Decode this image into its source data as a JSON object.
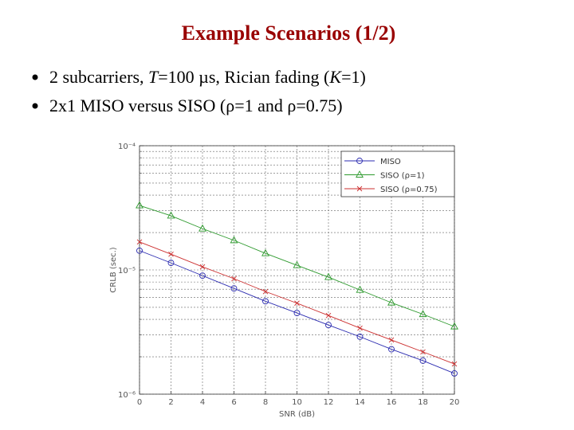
{
  "title": "Example Scenarios (1/2)",
  "bullets": [
    [
      "2 subcarriers, ",
      "T",
      "=100 µs, Rician fading (",
      "K",
      "=1)"
    ],
    [
      "2x1 MISO versus SISO (ρ=1 and ρ=0.75)"
    ]
  ],
  "chart_data": {
    "type": "line",
    "xlabel": "SNR (dB)",
    "ylabel": "CRLB (sec.)",
    "x": [
      0,
      2,
      4,
      6,
      8,
      10,
      12,
      14,
      16,
      18,
      20
    ],
    "xlim": [
      0,
      20
    ],
    "xticks": [
      0,
      2,
      4,
      6,
      8,
      10,
      12,
      14,
      16,
      18,
      20
    ],
    "ylim": [
      1e-06,
      0.0001
    ],
    "yticks": [
      {
        "value": 0.0001,
        "label": "10⁻⁴"
      },
      {
        "value": 1e-05,
        "label": "10⁻⁵"
      },
      {
        "value": 1e-06,
        "label": "10⁻⁶"
      }
    ],
    "log_y": true,
    "grid": true,
    "minor_grid": true,
    "legend": "upper right",
    "series": [
      {
        "name": "MISO",
        "color": "#2b2bb0",
        "marker": "o",
        "values": [
          1.43e-05,
          1.14e-05,
          9e-06,
          7.1e-06,
          5.6e-06,
          4.5e-06,
          3.6e-06,
          2.9e-06,
          2.3e-06,
          1.86e-06,
          1.47e-06
        ]
      },
      {
        "name": "SISO (ρ=1)",
        "color": "#2e9a2e",
        "marker": "^",
        "values": [
          3.3e-05,
          2.73e-05,
          2.15e-05,
          1.73e-05,
          1.36e-05,
          1.09e-05,
          8.75e-06,
          6.9e-06,
          5.45e-06,
          4.4e-06,
          3.5e-06
        ]
      },
      {
        "name": "SISO (ρ=0.75)",
        "color": "#cc2f2f",
        "marker": "x",
        "values": [
          1.68e-05,
          1.34e-05,
          1.06e-05,
          8.5e-06,
          6.7e-06,
          5.4e-06,
          4.3e-06,
          3.4e-06,
          2.73e-06,
          2.19e-06,
          1.75e-06
        ]
      }
    ]
  }
}
